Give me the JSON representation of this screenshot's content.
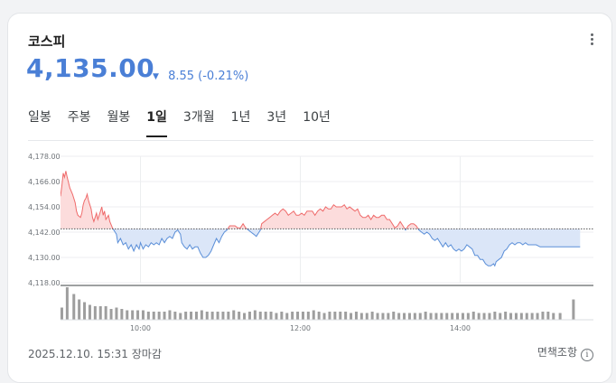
{
  "index_name": "코스피",
  "price": "4,135.00",
  "change": {
    "direction": "down",
    "value": "8.55",
    "percent": "(-0.21%)",
    "color": "#4a7fd6"
  },
  "tabs": [
    "일봉",
    "주봉",
    "월봉",
    "1일",
    "3개월",
    "1년",
    "3년",
    "10년"
  ],
  "active_tab": "1일",
  "footer": {
    "timestamp": "2025.12.10. 15:31",
    "status": "장마감",
    "disclaimer": "면책조항"
  },
  "icons": {
    "more": "more-vert-icon",
    "change_arrow": "triangle-down-icon",
    "info": "info-icon"
  },
  "colors": {
    "up": "#ef6b6b",
    "up_fill": "#fcdcdc",
    "down": "#5b8fd8",
    "down_fill": "#dbe6f8",
    "volume": "#9e9e9e"
  },
  "chart_data": {
    "type": "area",
    "baseline": 4143.55,
    "y_ticks": [
      "4,178.00",
      "4,166.00",
      "4,154.00",
      "4,142.00",
      "4,130.00",
      "4,118.00"
    ],
    "y_tick_values": [
      4178,
      4166,
      4154,
      4142,
      4130,
      4118
    ],
    "ylim": [
      4118,
      4178
    ],
    "x_ticks": [
      "10:00",
      "12:00",
      "14:00"
    ],
    "x_tick_minutes": [
      60,
      180,
      300
    ],
    "xlim_minutes": [
      0,
      400
    ],
    "session_end_minute": 390,
    "x_unit": "minutes since 09:00",
    "price_series": [
      [
        0,
        4159
      ],
      [
        1,
        4164
      ],
      [
        2,
        4170
      ],
      [
        3,
        4168
      ],
      [
        4,
        4171
      ],
      [
        5,
        4168
      ],
      [
        7,
        4163
      ],
      [
        9,
        4160
      ],
      [
        11,
        4156
      ],
      [
        12,
        4152
      ],
      [
        13,
        4150
      ],
      [
        15,
        4149
      ],
      [
        16,
        4151
      ],
      [
        17,
        4155
      ],
      [
        18,
        4157
      ],
      [
        19,
        4158
      ],
      [
        20,
        4160
      ],
      [
        21,
        4157
      ],
      [
        23,
        4153
      ],
      [
        24,
        4149
      ],
      [
        25,
        4147
      ],
      [
        26,
        4149
      ],
      [
        27,
        4151
      ],
      [
        28,
        4148
      ],
      [
        30,
        4152
      ],
      [
        31,
        4154
      ],
      [
        32,
        4150
      ],
      [
        33,
        4152
      ],
      [
        34,
        4148
      ],
      [
        35,
        4149
      ],
      [
        36,
        4150
      ],
      [
        37,
        4147
      ],
      [
        39,
        4144
      ],
      [
        40,
        4143
      ],
      [
        42,
        4141
      ],
      [
        43,
        4137
      ],
      [
        45,
        4139
      ],
      [
        47,
        4136
      ],
      [
        49,
        4137
      ],
      [
        51,
        4134
      ],
      [
        53,
        4136
      ],
      [
        55,
        4133
      ],
      [
        57,
        4136
      ],
      [
        59,
        4134
      ],
      [
        60,
        4137
      ],
      [
        62,
        4134
      ],
      [
        64,
        4136
      ],
      [
        66,
        4135
      ],
      [
        68,
        4137
      ],
      [
        70,
        4136
      ],
      [
        72,
        4137
      ],
      [
        74,
        4136
      ],
      [
        76,
        4139
      ],
      [
        78,
        4137
      ],
      [
        80,
        4139
      ],
      [
        82,
        4140
      ],
      [
        84,
        4139
      ],
      [
        86,
        4142
      ],
      [
        88,
        4143
      ],
      [
        90,
        4141
      ],
      [
        91,
        4137
      ],
      [
        93,
        4135
      ],
      [
        95,
        4134
      ],
      [
        97,
        4136
      ],
      [
        99,
        4134
      ],
      [
        101,
        4135
      ],
      [
        103,
        4135
      ],
      [
        105,
        4132
      ],
      [
        107,
        4130
      ],
      [
        109,
        4130
      ],
      [
        111,
        4131
      ],
      [
        113,
        4133
      ],
      [
        115,
        4136
      ],
      [
        117,
        4139
      ],
      [
        119,
        4137
      ],
      [
        121,
        4140
      ],
      [
        123,
        4142
      ],
      [
        125,
        4143
      ],
      [
        127,
        4145
      ],
      [
        128,
        4145
      ],
      [
        129,
        4145
      ],
      [
        131,
        4145
      ],
      [
        133,
        4144
      ],
      [
        135,
        4144
      ],
      [
        137,
        4146
      ],
      [
        139,
        4144
      ],
      [
        141,
        4143
      ],
      [
        143,
        4142
      ],
      [
        145,
        4141
      ],
      [
        147,
        4140
      ],
      [
        149,
        4142
      ],
      [
        150,
        4143
      ],
      [
        151,
        4146
      ],
      [
        153,
        4147
      ],
      [
        155,
        4148
      ],
      [
        157,
        4149
      ],
      [
        159,
        4150
      ],
      [
        161,
        4151
      ],
      [
        163,
        4150
      ],
      [
        165,
        4152
      ],
      [
        167,
        4153
      ],
      [
        169,
        4152
      ],
      [
        171,
        4150
      ],
      [
        173,
        4151
      ],
      [
        175,
        4152
      ],
      [
        177,
        4150
      ],
      [
        179,
        4150
      ],
      [
        181,
        4151
      ],
      [
        183,
        4150
      ],
      [
        185,
        4152
      ],
      [
        187,
        4152
      ],
      [
        189,
        4152
      ],
      [
        191,
        4150
      ],
      [
        193,
        4152
      ],
      [
        195,
        4153
      ],
      [
        197,
        4152
      ],
      [
        199,
        4154
      ],
      [
        201,
        4153
      ],
      [
        203,
        4153
      ],
      [
        205,
        4155
      ],
      [
        207,
        4154
      ],
      [
        209,
        4154
      ],
      [
        211,
        4154
      ],
      [
        213,
        4155
      ],
      [
        215,
        4153
      ],
      [
        217,
        4154
      ],
      [
        219,
        4153
      ],
      [
        221,
        4152
      ],
      [
        223,
        4153
      ],
      [
        225,
        4150
      ],
      [
        227,
        4149
      ],
      [
        229,
        4149
      ],
      [
        231,
        4150
      ],
      [
        233,
        4148
      ],
      [
        235,
        4150
      ],
      [
        237,
        4149
      ],
      [
        239,
        4149
      ],
      [
        241,
        4150
      ],
      [
        243,
        4150
      ],
      [
        245,
        4148
      ],
      [
        247,
        4148
      ],
      [
        249,
        4146
      ],
      [
        251,
        4144
      ],
      [
        253,
        4145
      ],
      [
        255,
        4147
      ],
      [
        257,
        4145
      ],
      [
        259,
        4143
      ],
      [
        261,
        4145
      ],
      [
        263,
        4146
      ],
      [
        265,
        4146
      ],
      [
        267,
        4145
      ],
      [
        269,
        4143
      ],
      [
        271,
        4142
      ],
      [
        273,
        4141
      ],
      [
        275,
        4142
      ],
      [
        277,
        4141
      ],
      [
        279,
        4139
      ],
      [
        281,
        4138
      ],
      [
        283,
        4139
      ],
      [
        285,
        4137
      ],
      [
        287,
        4135
      ],
      [
        289,
        4137
      ],
      [
        291,
        4135
      ],
      [
        293,
        4136
      ],
      [
        295,
        4134
      ],
      [
        297,
        4133
      ],
      [
        299,
        4134
      ],
      [
        301,
        4133
      ],
      [
        303,
        4134
      ],
      [
        305,
        4136
      ],
      [
        307,
        4135
      ],
      [
        309,
        4134
      ],
      [
        311,
        4131
      ],
      [
        313,
        4131
      ],
      [
        315,
        4129
      ],
      [
        317,
        4129
      ],
      [
        319,
        4127
      ],
      [
        321,
        4126
      ],
      [
        323,
        4126
      ],
      [
        325,
        4127
      ],
      [
        326,
        4126
      ],
      [
        327,
        4128
      ],
      [
        329,
        4129
      ],
      [
        331,
        4130
      ],
      [
        333,
        4133
      ],
      [
        335,
        4134
      ],
      [
        337,
        4136
      ],
      [
        339,
        4137
      ],
      [
        341,
        4136
      ],
      [
        343,
        4137
      ],
      [
        345,
        4137
      ],
      [
        347,
        4136
      ],
      [
        349,
        4137
      ],
      [
        351,
        4136
      ],
      [
        352,
        4136
      ],
      [
        354,
        4136
      ],
      [
        357,
        4136
      ],
      [
        360,
        4135
      ],
      [
        375,
        4135
      ],
      [
        390,
        4135
      ]
    ],
    "volume_series": [
      [
        1,
        4.5
      ],
      [
        5,
        12
      ],
      [
        10,
        9.5
      ],
      [
        14,
        7.5
      ],
      [
        18,
        6.5
      ],
      [
        22,
        5.5
      ],
      [
        26,
        5
      ],
      [
        30,
        5
      ],
      [
        34,
        5
      ],
      [
        38,
        4
      ],
      [
        42,
        4.5
      ],
      [
        46,
        4
      ],
      [
        50,
        3.5
      ],
      [
        54,
        3.5
      ],
      [
        58,
        3.5
      ],
      [
        62,
        3.5
      ],
      [
        66,
        3
      ],
      [
        70,
        3
      ],
      [
        74,
        3
      ],
      [
        78,
        3
      ],
      [
        82,
        3.5
      ],
      [
        86,
        3
      ],
      [
        90,
        2.5
      ],
      [
        94,
        3
      ],
      [
        98,
        3
      ],
      [
        102,
        3
      ],
      [
        106,
        3.5
      ],
      [
        110,
        3
      ],
      [
        114,
        3
      ],
      [
        118,
        3
      ],
      [
        122,
        3
      ],
      [
        126,
        3
      ],
      [
        130,
        3.5
      ],
      [
        134,
        3
      ],
      [
        138,
        2.5
      ],
      [
        142,
        3
      ],
      [
        146,
        3.5
      ],
      [
        150,
        3
      ],
      [
        154,
        3
      ],
      [
        158,
        3
      ],
      [
        162,
        2.5
      ],
      [
        166,
        3
      ],
      [
        170,
        2.5
      ],
      [
        174,
        3
      ],
      [
        178,
        3
      ],
      [
        182,
        3
      ],
      [
        186,
        3
      ],
      [
        190,
        3.5
      ],
      [
        194,
        3
      ],
      [
        198,
        2.5
      ],
      [
        202,
        3
      ],
      [
        206,
        3
      ],
      [
        210,
        3
      ],
      [
        214,
        3
      ],
      [
        218,
        2.5
      ],
      [
        222,
        3
      ],
      [
        226,
        2.5
      ],
      [
        230,
        2.5
      ],
      [
        234,
        3
      ],
      [
        238,
        2.5
      ],
      [
        242,
        2.5
      ],
      [
        246,
        2.5
      ],
      [
        250,
        3
      ],
      [
        254,
        2.5
      ],
      [
        258,
        2.5
      ],
      [
        262,
        2.5
      ],
      [
        266,
        2.5
      ],
      [
        270,
        2.5
      ],
      [
        274,
        3
      ],
      [
        278,
        2.5
      ],
      [
        282,
        2.5
      ],
      [
        286,
        2.5
      ],
      [
        290,
        2.5
      ],
      [
        294,
        2.5
      ],
      [
        298,
        2.5
      ],
      [
        302,
        2.5
      ],
      [
        306,
        2.5
      ],
      [
        310,
        3
      ],
      [
        314,
        2.5
      ],
      [
        318,
        2.5
      ],
      [
        322,
        2.5
      ],
      [
        326,
        3
      ],
      [
        330,
        2.5
      ],
      [
        334,
        3
      ],
      [
        338,
        2.5
      ],
      [
        342,
        2.5
      ],
      [
        346,
        2.5
      ],
      [
        350,
        2.5
      ],
      [
        354,
        2.5
      ],
      [
        358,
        2.5
      ],
      [
        362,
        3
      ],
      [
        366,
        3
      ],
      [
        370,
        2.5
      ],
      [
        375,
        2.5
      ],
      [
        385,
        7.5
      ]
    ]
  }
}
